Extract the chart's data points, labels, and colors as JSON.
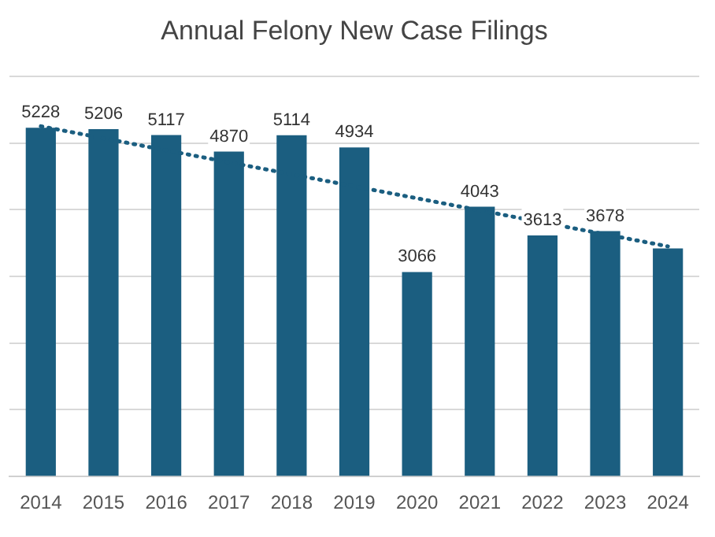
{
  "chart_data": {
    "type": "line",
    "title": "Annual Felony New Case Filings",
    "categories": [
      "2014",
      "2015",
      "2016",
      "2017",
      "2018",
      "2019",
      "2020",
      "2021",
      "2022",
      "2023",
      "2024"
    ],
    "series": [
      {
        "type": "bar",
        "color": "#1b5e80",
        "values": [
          5228,
          5206,
          5117,
          4870,
          5114,
          4934,
          3066,
          4043,
          3613,
          3678,
          3420
        ],
        "value_labels": [
          "5228",
          "5206",
          "5117",
          "4870",
          "5114",
          "4934",
          "3066",
          "4043",
          "3613",
          "3678",
          null
        ]
      },
      {
        "color": "#1b5e80",
        "line_style": "dotted",
        "marker": "none",
        "values": [
          5250,
          5070,
          4890,
          4710,
          4530,
          4350,
          4170,
          3990,
          null,
          3630,
          3450
        ]
      }
    ],
    "ylim": [
      0,
      6000
    ],
    "yticks": [
      0,
      1000,
      2000,
      3000,
      4000,
      5000,
      6000
    ],
    "grid": "y",
    "tick_labels": "x",
    "legend": false
  }
}
